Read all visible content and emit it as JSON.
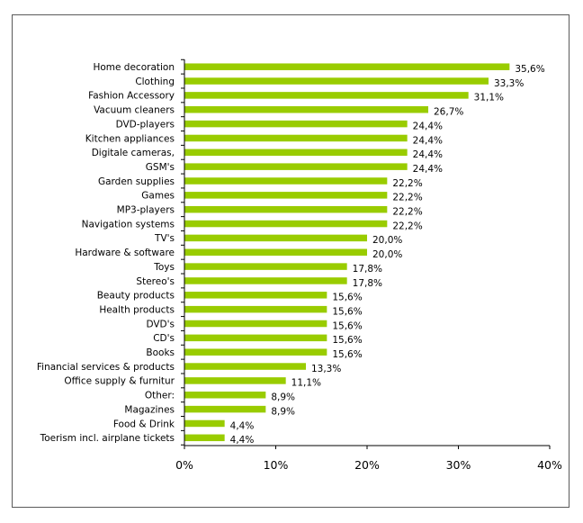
{
  "chart_data": {
    "type": "bar",
    "orientation": "horizontal",
    "title": "",
    "xlabel": "",
    "ylabel": "",
    "xlim": [
      0,
      40
    ],
    "x_ticks": [
      "0%",
      "10%",
      "20%",
      "30%",
      "40%"
    ],
    "grid": false,
    "legend": "none",
    "bar_color": "#99cc00",
    "categories": [
      "Home decoration",
      "Clothing",
      "Fashion Accessory",
      "Vacuum cleaners",
      "DVD-players",
      "Kitchen appliances",
      "Digitale cameras,",
      "GSM's",
      "Garden supplies",
      "Games",
      "MP3-players",
      "Navigation systems",
      "TV's",
      "Hardware & software",
      "Toys",
      "Stereo's",
      "Beauty products",
      "Health products",
      "DVD's",
      "CD's",
      "Books",
      "Financial services & products",
      "Office supply & furnitur",
      "Other:",
      "Magazines",
      "Food & Drink",
      "Toerism incl. airplane tickets"
    ],
    "values": [
      35.6,
      33.3,
      31.1,
      26.7,
      24.4,
      24.4,
      24.4,
      24.4,
      22.2,
      22.2,
      22.2,
      22.2,
      20.0,
      20.0,
      17.8,
      17.8,
      15.6,
      15.6,
      15.6,
      15.6,
      15.6,
      13.3,
      11.1,
      8.9,
      8.9,
      4.4,
      4.4
    ],
    "value_labels": [
      "35,6%",
      "33,3%",
      "31,1%",
      "26,7%",
      "24,4%",
      "24,4%",
      "24,4%",
      "24,4%",
      "22,2%",
      "22,2%",
      "22,2%",
      "22,2%",
      "20,0%",
      "20,0%",
      "17,8%",
      "17,8%",
      "15,6%",
      "15,6%",
      "15,6%",
      "15,6%",
      "15,6%",
      "13,3%",
      "11,1%",
      "8,9%",
      "8,9%",
      "4,4%",
      "4,4%"
    ]
  }
}
